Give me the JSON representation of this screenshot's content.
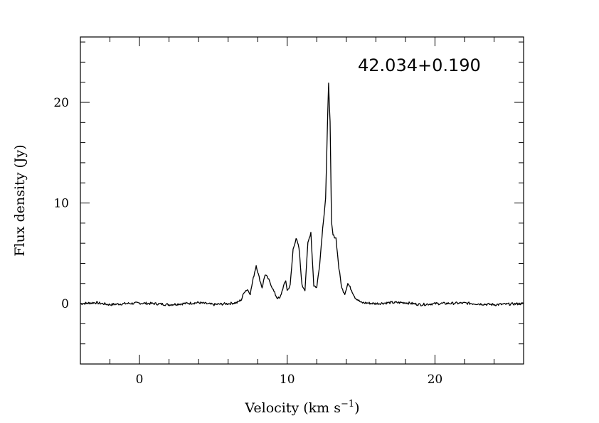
{
  "chart_data": {
    "type": "line",
    "annotation": "42.034+0.190",
    "xlabel": {
      "text": "Velocity (km s",
      "sup": "−1",
      "close": ")"
    },
    "ylabel": "Flux density (Jy)",
    "xlim": [
      -4.0,
      26.0
    ],
    "ylim": [
      -6.0,
      26.5
    ],
    "xticks_major": [
      0,
      10,
      20
    ],
    "xticks_major_labels": [
      "0",
      "10",
      "20"
    ],
    "xticks_minor_step": 2,
    "yticks_major": [
      0,
      10,
      20
    ],
    "yticks_major_labels": [
      "0",
      "10",
      "20"
    ],
    "yticks_minor_step": 2,
    "grid": false,
    "line_color": "#000000",
    "series": [
      {
        "x": [
          -4.0,
          -3.0,
          -2.0,
          -1.0,
          0.0,
          1.0,
          2.0,
          3.0,
          4.0,
          5.0,
          6.0,
          6.6,
          6.9,
          7.1,
          7.3,
          7.5,
          7.7,
          7.9,
          8.1,
          8.3,
          8.5,
          8.7,
          8.9,
          9.1,
          9.3,
          9.5,
          9.7,
          9.9,
          10.0,
          10.2,
          10.4,
          10.6,
          10.8,
          11.0,
          11.2,
          11.4,
          11.6,
          11.8,
          12.0,
          12.2,
          12.4,
          12.6,
          12.8,
          12.9,
          13.0,
          13.1,
          13.3,
          13.5,
          13.7,
          13.9,
          14.1,
          14.3,
          14.6,
          15.0,
          16.0,
          17.0,
          18.0,
          19.0,
          20.0,
          22.0,
          24.0,
          26.0
        ],
        "y": [
          0.0,
          0.1,
          -0.1,
          0.0,
          0.05,
          0.0,
          -0.1,
          0.0,
          0.1,
          -0.1,
          0.0,
          0.1,
          0.4,
          1.2,
          1.4,
          1.0,
          2.5,
          3.8,
          2.6,
          1.6,
          2.9,
          2.5,
          1.9,
          1.2,
          0.6,
          0.5,
          1.5,
          2.3,
          1.3,
          1.8,
          5.4,
          6.5,
          5.5,
          1.8,
          1.4,
          6.0,
          7.1,
          1.8,
          1.6,
          4.0,
          7.5,
          10.5,
          22.0,
          18.0,
          8.0,
          6.8,
          6.5,
          3.5,
          1.5,
          1.0,
          2.0,
          1.5,
          0.6,
          0.1,
          0.0,
          0.1,
          0.1,
          -0.1,
          0.0,
          0.05,
          -0.1,
          0.0
        ]
      }
    ]
  }
}
